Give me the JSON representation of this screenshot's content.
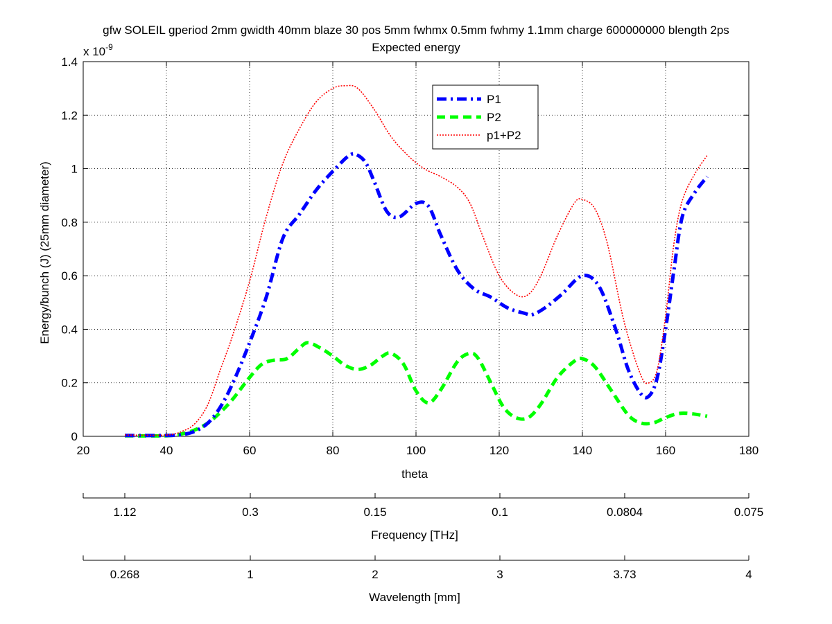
{
  "chart_data": {
    "type": "line",
    "title_line1": "gfw SOLEIL gperiod 2mm gwidth 40mm blaze 30 pos 5mm fwhmx 0.5mm fwhmy 1.1mm charge 600000000 blength 2ps",
    "title_line2": "Expected energy",
    "xlabel": "theta",
    "ylabel": "Energy/bunch (J)  (25mm diameter)",
    "y_exponent_label": "x 10",
    "y_exponent_power": "-9",
    "xlim": [
      20,
      180
    ],
    "ylim": [
      0,
      1.4
    ],
    "xticks": [
      "20",
      "40",
      "60",
      "80",
      "100",
      "120",
      "140",
      "160",
      "180"
    ],
    "yticks": [
      "0",
      "0.2",
      "0.4",
      "0.6",
      "0.8",
      "1",
      "1.2",
      "1.4"
    ],
    "grid": true,
    "legend_position": "top-center",
    "series": [
      {
        "name": "P1",
        "style": "dash-dot",
        "color": "#0000ff",
        "x": [
          30,
          40,
          44,
          47,
          50,
          53,
          56,
          60,
          64,
          68,
          72,
          76,
          80,
          84,
          86,
          88,
          90,
          93,
          96,
          100,
          103,
          106,
          110,
          114,
          118,
          122,
          126,
          128,
          131,
          135,
          140,
          144,
          148,
          151,
          154,
          156,
          158,
          160,
          162,
          164,
          167,
          170
        ],
        "values": [
          0.003,
          0.003,
          0.007,
          0.02,
          0.05,
          0.11,
          0.2,
          0.35,
          0.52,
          0.74,
          0.83,
          0.92,
          0.99,
          1.05,
          1.05,
          1.02,
          0.95,
          0.84,
          0.82,
          0.87,
          0.86,
          0.75,
          0.62,
          0.55,
          0.52,
          0.48,
          0.46,
          0.455,
          0.48,
          0.53,
          0.6,
          0.56,
          0.4,
          0.25,
          0.16,
          0.15,
          0.22,
          0.4,
          0.62,
          0.82,
          0.91,
          0.97
        ]
      },
      {
        "name": "P2",
        "style": "dashed",
        "color": "#00ff00",
        "x": [
          30,
          40,
          44,
          47,
          50,
          53,
          56,
          60,
          63,
          66,
          69,
          72,
          74,
          77,
          80,
          83,
          86,
          89,
          92,
          94,
          97,
          100,
          103,
          106,
          110,
          113,
          115,
          118,
          121,
          124,
          127,
          130,
          134,
          138,
          140,
          143,
          147,
          151,
          154,
          157,
          160,
          163,
          166,
          170
        ],
        "values": [
          0.002,
          0.002,
          0.01,
          0.025,
          0.05,
          0.09,
          0.14,
          0.22,
          0.27,
          0.285,
          0.29,
          0.33,
          0.35,
          0.33,
          0.3,
          0.265,
          0.25,
          0.265,
          0.3,
          0.31,
          0.27,
          0.17,
          0.125,
          0.175,
          0.28,
          0.31,
          0.29,
          0.2,
          0.11,
          0.07,
          0.07,
          0.12,
          0.22,
          0.28,
          0.29,
          0.26,
          0.17,
          0.08,
          0.05,
          0.05,
          0.07,
          0.085,
          0.085,
          0.075
        ]
      },
      {
        "name": "p1+P2",
        "style": "dotted",
        "color": "#ff0000",
        "x": [
          30,
          40,
          44,
          47,
          50,
          53,
          56,
          60,
          64,
          68,
          72,
          76,
          80,
          83,
          86,
          90,
          94,
          98,
          102,
          106,
          110,
          113,
          116,
          120,
          124,
          127,
          130,
          134,
          138,
          140,
          143,
          146,
          150,
          154,
          156,
          158,
          160,
          162,
          164,
          167,
          170
        ],
        "values": [
          0.005,
          0.005,
          0.02,
          0.05,
          0.12,
          0.25,
          0.38,
          0.58,
          0.82,
          1.02,
          1.15,
          1.25,
          1.3,
          1.31,
          1.3,
          1.22,
          1.12,
          1.05,
          1.0,
          0.97,
          0.93,
          0.87,
          0.75,
          0.6,
          0.53,
          0.53,
          0.6,
          0.75,
          0.87,
          0.885,
          0.85,
          0.72,
          0.43,
          0.23,
          0.2,
          0.25,
          0.45,
          0.72,
          0.88,
          0.98,
          1.05
        ]
      }
    ],
    "secondary_axes": [
      {
        "label": "Frequency [THz]",
        "ticks": [
          "1.12",
          "0.3",
          "0.15",
          "0.1",
          "0.0804",
          "0.075"
        ]
      },
      {
        "label": "Wavelength [mm]",
        "ticks": [
          "0.268",
          "1",
          "2",
          "3",
          "3.73",
          "4"
        ]
      }
    ]
  }
}
